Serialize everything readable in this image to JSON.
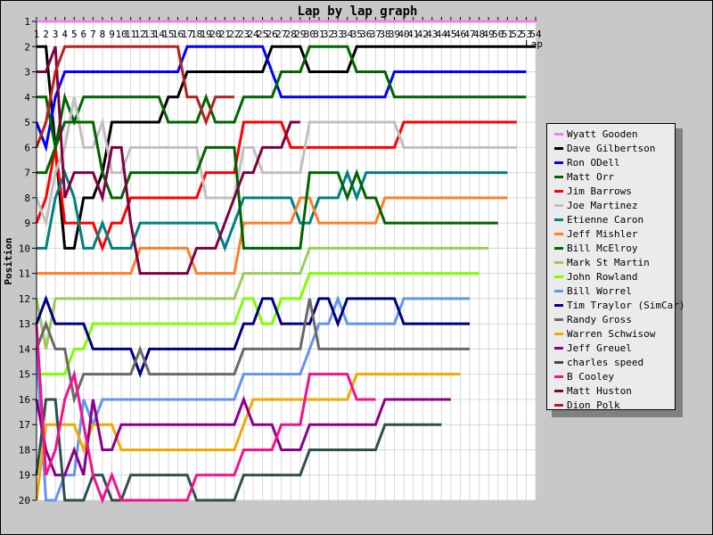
{
  "chart_data": {
    "type": "line",
    "title": "Lap by lap graph",
    "xlabel": "Lap",
    "ylabel": "Position",
    "xlim": [
      1,
      54
    ],
    "ylim": [
      1,
      20
    ],
    "y_inverted": true,
    "grid": true,
    "legend_position": "right",
    "x_ticks": [
      1,
      2,
      3,
      4,
      5,
      6,
      7,
      8,
      9,
      10,
      11,
      12,
      13,
      14,
      15,
      16,
      17,
      18,
      19,
      20,
      21,
      22,
      23,
      24,
      25,
      26,
      27,
      28,
      29,
      30,
      31,
      32,
      33,
      34,
      35,
      36,
      37,
      38,
      39,
      40,
      41,
      42,
      43,
      44,
      45,
      46,
      47,
      48,
      49,
      50,
      51,
      52,
      53,
      54
    ],
    "y_ticks": [
      1,
      2,
      3,
      4,
      5,
      6,
      7,
      8,
      9,
      10,
      11,
      12,
      13,
      14,
      15,
      16,
      17,
      18,
      19,
      20
    ],
    "series": [
      {
        "name": "Wyatt Gooden",
        "color": "#ee82ee",
        "values": [
          1,
          1,
          1,
          1,
          1,
          1,
          1,
          1,
          1,
          1,
          1,
          1,
          1,
          1,
          1,
          1,
          1,
          1,
          1,
          1,
          1,
          1,
          1,
          1,
          1,
          1,
          1,
          1,
          1,
          1,
          1,
          1,
          1,
          1,
          1,
          1,
          1,
          1,
          1,
          1,
          1,
          1,
          1,
          1,
          1,
          1,
          1,
          1,
          1,
          1,
          1,
          1,
          1,
          1
        ]
      },
      {
        "name": "Dave Gilbertson",
        "color": "#000000",
        "values": [
          2,
          2,
          6,
          10,
          10,
          8,
          8,
          7,
          5,
          5,
          5,
          5,
          5,
          5,
          4,
          4,
          3,
          3,
          3,
          3,
          3,
          3,
          3,
          3,
          3,
          2,
          2,
          2,
          2,
          3,
          3,
          3,
          3,
          3,
          2,
          2,
          2,
          2,
          2,
          2,
          2,
          2,
          2,
          2,
          2,
          2,
          2,
          2,
          2,
          2,
          2,
          2,
          2,
          2
        ]
      },
      {
        "name": "Ron ODell",
        "color": "#0000ff",
        "values": [
          5,
          6,
          4,
          3,
          3,
          3,
          3,
          3,
          3,
          3,
          3,
          3,
          3,
          3,
          3,
          3,
          2,
          2,
          2,
          2,
          2,
          2,
          2,
          2,
          2,
          3,
          4,
          4,
          4,
          4,
          4,
          4,
          4,
          4,
          4,
          4,
          4,
          4,
          3,
          3,
          3,
          3,
          3,
          3,
          3,
          3,
          3,
          3,
          3,
          3,
          3,
          3,
          3
        ]
      },
      {
        "name": "Matt Orr",
        "color": "#006400",
        "values": [
          4,
          4,
          6,
          4,
          5,
          4,
          4,
          4,
          4,
          4,
          4,
          4,
          4,
          4,
          5,
          5,
          5,
          5,
          4,
          5,
          5,
          5,
          4,
          4,
          4,
          4,
          3,
          3,
          3,
          2,
          2,
          2,
          2,
          2,
          3,
          3,
          3,
          3,
          4,
          4,
          4,
          4,
          4,
          4,
          4,
          4,
          4,
          4,
          4,
          4,
          4,
          4,
          4
        ]
      },
      {
        "name": "Jim Barrows",
        "color": "#ff0000",
        "values": [
          9,
          8,
          6,
          9,
          9,
          9,
          9,
          10,
          9,
          9,
          8,
          8,
          8,
          8,
          8,
          8,
          8,
          8,
          7,
          7,
          7,
          7,
          5,
          5,
          5,
          5,
          5,
          6,
          6,
          6,
          6,
          6,
          6,
          6,
          6,
          6,
          6,
          6,
          6,
          5,
          5,
          5,
          5,
          5,
          5,
          5,
          5,
          5,
          5,
          5,
          5,
          5
        ]
      },
      {
        "name": "Joe Martinez",
        "color": "#c0c0c0",
        "values": [
          8,
          9,
          7,
          6,
          4,
          6,
          6,
          5,
          7,
          7,
          6,
          6,
          6,
          6,
          6,
          6,
          6,
          6,
          8,
          8,
          8,
          8,
          6,
          6,
          7,
          7,
          7,
          7,
          7,
          5,
          5,
          5,
          5,
          5,
          5,
          5,
          5,
          5,
          5,
          6,
          6,
          6,
          6,
          6,
          6,
          6,
          6,
          6,
          6,
          6,
          6,
          6
        ]
      },
      {
        "name": "Etienne Caron",
        "color": "#008080",
        "values": [
          10,
          10,
          8,
          7,
          8,
          10,
          10,
          9,
          10,
          10,
          10,
          9,
          9,
          9,
          9,
          9,
          9,
          9,
          9,
          9,
          10,
          9,
          8,
          8,
          8,
          8,
          8,
          8,
          9,
          9,
          8,
          8,
          8,
          7,
          8,
          7,
          7,
          7,
          7,
          7,
          7,
          7,
          7,
          7,
          7,
          7,
          7,
          7,
          7,
          7,
          7
        ]
      },
      {
        "name": "Jeff Mishler",
        "color": "#ff7f27",
        "values": [
          11,
          11,
          11,
          11,
          11,
          11,
          11,
          11,
          11,
          11,
          11,
          10,
          10,
          10,
          10,
          10,
          10,
          11,
          11,
          11,
          11,
          11,
          9,
          9,
          9,
          9,
          9,
          9,
          8,
          8,
          9,
          9,
          9,
          9,
          9,
          9,
          9,
          8,
          8,
          8,
          8,
          8,
          8,
          8,
          8,
          8,
          8,
          8,
          8,
          8,
          8
        ]
      },
      {
        "name": "Bill McElroy",
        "color": "#006400",
        "values": [
          7,
          7,
          6,
          5,
          5,
          5,
          5,
          7,
          8,
          8,
          7,
          7,
          7,
          7,
          7,
          7,
          7,
          7,
          6,
          6,
          6,
          6,
          10,
          10,
          10,
          10,
          10,
          10,
          10,
          7,
          7,
          7,
          7,
          8,
          7,
          8,
          8,
          9,
          9,
          9,
          9,
          9,
          9,
          9,
          9,
          9,
          9,
          9,
          9,
          9
        ]
      },
      {
        "name": "Mark St Martin",
        "color": "#9acd5a",
        "values": [
          12,
          14,
          12,
          12,
          12,
          12,
          12,
          12,
          12,
          12,
          12,
          12,
          12,
          12,
          12,
          12,
          12,
          12,
          12,
          12,
          12,
          12,
          11,
          11,
          11,
          11,
          11,
          11,
          11,
          10,
          10,
          10,
          10,
          10,
          10,
          10,
          10,
          10,
          10,
          10,
          10,
          10,
          10,
          10,
          10,
          10,
          10,
          10,
          10
        ]
      },
      {
        "name": "John Rowland",
        "color": "#80ff00",
        "values": [
          15,
          15,
          15,
          15,
          14,
          14,
          13,
          13,
          13,
          13,
          13,
          13,
          13,
          13,
          13,
          13,
          13,
          13,
          13,
          13,
          13,
          13,
          12,
          12,
          13,
          13,
          12,
          12,
          12,
          11,
          11,
          11,
          11,
          11,
          11,
          11,
          11,
          11,
          11,
          11,
          11,
          11,
          11,
          11,
          11,
          11,
          11,
          11
        ]
      },
      {
        "name": "Bill Worrel",
        "color": "#6495ed",
        "values": [
          14,
          20,
          20,
          19,
          19,
          16,
          17,
          16,
          16,
          16,
          16,
          16,
          16,
          16,
          16,
          16,
          16,
          16,
          16,
          16,
          16,
          16,
          15,
          15,
          15,
          15,
          15,
          15,
          15,
          14,
          13,
          13,
          12,
          13,
          13,
          13,
          13,
          13,
          13,
          12,
          12,
          12,
          12,
          12,
          12,
          12,
          12
        ]
      },
      {
        "name": "Tim Traylor (SimCar)",
        "color": "#000080",
        "values": [
          13,
          12,
          13,
          13,
          13,
          13,
          14,
          14,
          14,
          14,
          14,
          15,
          14,
          14,
          14,
          14,
          14,
          14,
          14,
          14,
          14,
          14,
          13,
          13,
          12,
          12,
          13,
          13,
          13,
          13,
          12,
          12,
          13,
          12,
          12,
          12,
          12,
          12,
          12,
          13,
          13,
          13,
          13,
          13,
          13,
          13,
          13
        ]
      },
      {
        "name": "Randy Gross",
        "color": "#696969",
        "values": [
          14,
          13,
          14,
          14,
          16,
          15,
          15,
          15,
          15,
          15,
          15,
          14,
          15,
          15,
          15,
          15,
          15,
          15,
          15,
          15,
          15,
          15,
          14,
          14,
          14,
          14,
          14,
          14,
          14,
          12,
          14,
          14,
          14,
          14,
          14,
          14,
          14,
          14,
          14,
          14,
          14,
          14,
          14,
          14,
          14,
          14,
          14
        ]
      },
      {
        "name": "Warren Schwisow",
        "color": "#f0aa00",
        "values": [
          20,
          17,
          17,
          17,
          17,
          18,
          17,
          17,
          17,
          18,
          18,
          18,
          18,
          18,
          18,
          18,
          18,
          18,
          18,
          18,
          18,
          18,
          17,
          16,
          16,
          16,
          16,
          16,
          16,
          16,
          16,
          16,
          16,
          16,
          15,
          15,
          15,
          15,
          15,
          15,
          15,
          15,
          15,
          15,
          15,
          15
        ]
      },
      {
        "name": "Jeff Greuel",
        "color": "#8b008b",
        "values": [
          16,
          18,
          19,
          19,
          18,
          19,
          16,
          18,
          18,
          17,
          17,
          17,
          17,
          17,
          17,
          17,
          17,
          17,
          17,
          17,
          17,
          17,
          16,
          17,
          17,
          17,
          18,
          18,
          18,
          17,
          17,
          17,
          17,
          17,
          17,
          17,
          17,
          16,
          16,
          16,
          16,
          16,
          16,
          16,
          16
        ]
      },
      {
        "name": "charles speed",
        "color": "#2f4f4f",
        "values": [
          19,
          16,
          16,
          20,
          20,
          20,
          19,
          19,
          20,
          20,
          19,
          19,
          19,
          19,
          19,
          19,
          19,
          20,
          20,
          20,
          20,
          20,
          19,
          19,
          19,
          19,
          19,
          19,
          19,
          18,
          18,
          18,
          18,
          18,
          18,
          18,
          18,
          17,
          17,
          17,
          17,
          17,
          17,
          17
        ]
      },
      {
        "name": "B Cooley",
        "color": "#f0148c",
        "values": [
          13,
          19,
          18,
          16,
          15,
          17,
          19,
          20,
          19,
          20,
          20,
          20,
          20,
          20,
          20,
          20,
          20,
          19,
          19,
          19,
          19,
          19,
          18,
          18,
          18,
          18,
          17,
          17,
          17,
          15,
          15,
          15,
          15,
          15,
          16,
          16,
          16
        ]
      },
      {
        "name": "Matt Huston",
        "color": "#800040",
        "values": [
          3,
          3,
          2,
          8,
          7,
          7,
          7,
          8,
          6,
          6,
          9,
          11,
          11,
          11,
          11,
          11,
          11,
          10,
          10,
          10,
          9,
          8,
          7,
          7,
          6,
          6,
          6,
          5,
          5
        ]
      },
      {
        "name": "Dion Polk",
        "color": "#b22222",
        "values": [
          6,
          5,
          3,
          2,
          2,
          2,
          2,
          2,
          2,
          2,
          2,
          2,
          2,
          2,
          2,
          2,
          4,
          4,
          5,
          4,
          4,
          4
        ]
      }
    ]
  }
}
